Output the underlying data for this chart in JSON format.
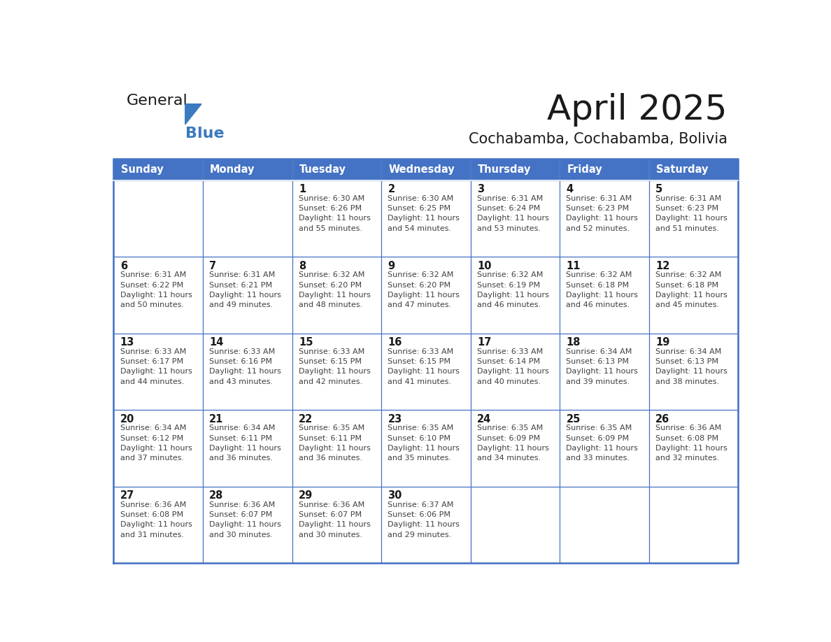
{
  "title": "April 2025",
  "subtitle": "Cochabamba, Cochabamba, Bolivia",
  "header_bg": "#4472C4",
  "header_text": "#FFFFFF",
  "cell_bg": "#FFFFFF",
  "border_color": "#4472C4",
  "day_names": [
    "Sunday",
    "Monday",
    "Tuesday",
    "Wednesday",
    "Thursday",
    "Friday",
    "Saturday"
  ],
  "title_color": "#1a1a1a",
  "subtitle_color": "#1a1a1a",
  "cell_text_color": "#404040",
  "day_num_color": "#1a1a1a",
  "general_text_color": "#1a1a1a",
  "blue_text_color": "#3a7abf",
  "logo_triangle_color": "#3a7abf",
  "calendar": [
    [
      {
        "day": "",
        "sunrise": "",
        "sunset": "",
        "daylight": ""
      },
      {
        "day": "",
        "sunrise": "",
        "sunset": "",
        "daylight": ""
      },
      {
        "day": "1",
        "sunrise": "6:30 AM",
        "sunset": "6:26 PM",
        "daylight": "11 hours and 55 minutes."
      },
      {
        "day": "2",
        "sunrise": "6:30 AM",
        "sunset": "6:25 PM",
        "daylight": "11 hours and 54 minutes."
      },
      {
        "day": "3",
        "sunrise": "6:31 AM",
        "sunset": "6:24 PM",
        "daylight": "11 hours and 53 minutes."
      },
      {
        "day": "4",
        "sunrise": "6:31 AM",
        "sunset": "6:23 PM",
        "daylight": "11 hours and 52 minutes."
      },
      {
        "day": "5",
        "sunrise": "6:31 AM",
        "sunset": "6:23 PM",
        "daylight": "11 hours and 51 minutes."
      }
    ],
    [
      {
        "day": "6",
        "sunrise": "6:31 AM",
        "sunset": "6:22 PM",
        "daylight": "11 hours and 50 minutes."
      },
      {
        "day": "7",
        "sunrise": "6:31 AM",
        "sunset": "6:21 PM",
        "daylight": "11 hours and 49 minutes."
      },
      {
        "day": "8",
        "sunrise": "6:32 AM",
        "sunset": "6:20 PM",
        "daylight": "11 hours and 48 minutes."
      },
      {
        "day": "9",
        "sunrise": "6:32 AM",
        "sunset": "6:20 PM",
        "daylight": "11 hours and 47 minutes."
      },
      {
        "day": "10",
        "sunrise": "6:32 AM",
        "sunset": "6:19 PM",
        "daylight": "11 hours and 46 minutes."
      },
      {
        "day": "11",
        "sunrise": "6:32 AM",
        "sunset": "6:18 PM",
        "daylight": "11 hours and 46 minutes."
      },
      {
        "day": "12",
        "sunrise": "6:32 AM",
        "sunset": "6:18 PM",
        "daylight": "11 hours and 45 minutes."
      }
    ],
    [
      {
        "day": "13",
        "sunrise": "6:33 AM",
        "sunset": "6:17 PM",
        "daylight": "11 hours and 44 minutes."
      },
      {
        "day": "14",
        "sunrise": "6:33 AM",
        "sunset": "6:16 PM",
        "daylight": "11 hours and 43 minutes."
      },
      {
        "day": "15",
        "sunrise": "6:33 AM",
        "sunset": "6:15 PM",
        "daylight": "11 hours and 42 minutes."
      },
      {
        "day": "16",
        "sunrise": "6:33 AM",
        "sunset": "6:15 PM",
        "daylight": "11 hours and 41 minutes."
      },
      {
        "day": "17",
        "sunrise": "6:33 AM",
        "sunset": "6:14 PM",
        "daylight": "11 hours and 40 minutes."
      },
      {
        "day": "18",
        "sunrise": "6:34 AM",
        "sunset": "6:13 PM",
        "daylight": "11 hours and 39 minutes."
      },
      {
        "day": "19",
        "sunrise": "6:34 AM",
        "sunset": "6:13 PM",
        "daylight": "11 hours and 38 minutes."
      }
    ],
    [
      {
        "day": "20",
        "sunrise": "6:34 AM",
        "sunset": "6:12 PM",
        "daylight": "11 hours and 37 minutes."
      },
      {
        "day": "21",
        "sunrise": "6:34 AM",
        "sunset": "6:11 PM",
        "daylight": "11 hours and 36 minutes."
      },
      {
        "day": "22",
        "sunrise": "6:35 AM",
        "sunset": "6:11 PM",
        "daylight": "11 hours and 36 minutes."
      },
      {
        "day": "23",
        "sunrise": "6:35 AM",
        "sunset": "6:10 PM",
        "daylight": "11 hours and 35 minutes."
      },
      {
        "day": "24",
        "sunrise": "6:35 AM",
        "sunset": "6:09 PM",
        "daylight": "11 hours and 34 minutes."
      },
      {
        "day": "25",
        "sunrise": "6:35 AM",
        "sunset": "6:09 PM",
        "daylight": "11 hours and 33 minutes."
      },
      {
        "day": "26",
        "sunrise": "6:36 AM",
        "sunset": "6:08 PM",
        "daylight": "11 hours and 32 minutes."
      }
    ],
    [
      {
        "day": "27",
        "sunrise": "6:36 AM",
        "sunset": "6:08 PM",
        "daylight": "11 hours and 31 minutes."
      },
      {
        "day": "28",
        "sunrise": "6:36 AM",
        "sunset": "6:07 PM",
        "daylight": "11 hours and 30 minutes."
      },
      {
        "day": "29",
        "sunrise": "6:36 AM",
        "sunset": "6:07 PM",
        "daylight": "11 hours and 30 minutes."
      },
      {
        "day": "30",
        "sunrise": "6:37 AM",
        "sunset": "6:06 PM",
        "daylight": "11 hours and 29 minutes."
      },
      {
        "day": "",
        "sunrise": "",
        "sunset": "",
        "daylight": ""
      },
      {
        "day": "",
        "sunrise": "",
        "sunset": "",
        "daylight": ""
      },
      {
        "day": "",
        "sunrise": "",
        "sunset": "",
        "daylight": ""
      }
    ]
  ]
}
